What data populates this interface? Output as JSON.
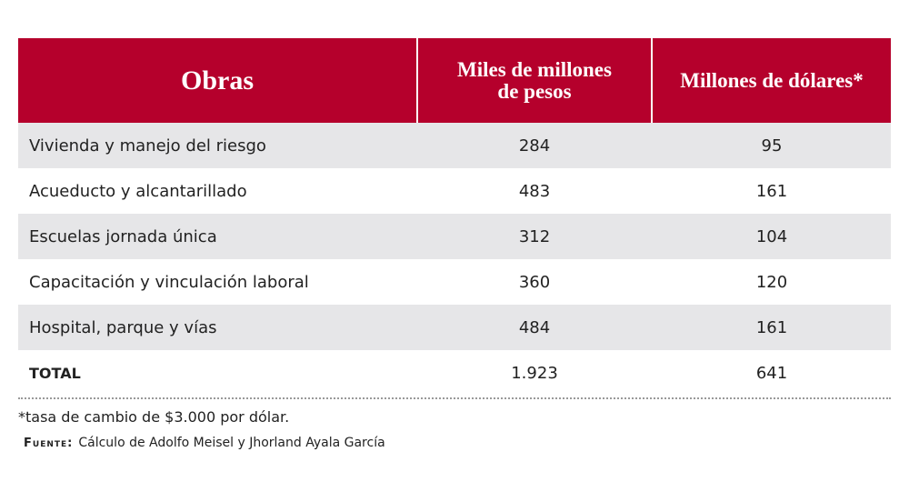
{
  "table": {
    "header": [
      "Obras",
      "Miles de millones de pesos",
      "Millones de dólares*"
    ],
    "rows": [
      [
        "Vivienda y manejo del riesgo",
        "284",
        "95"
      ],
      [
        "Acueducto y alcantarillado",
        "483",
        "161"
      ],
      [
        "Escuelas jornada única",
        "312",
        "104"
      ],
      [
        "Capacitación y vinculación laboral",
        "360",
        "120"
      ],
      [
        "Hospital, parque y vías",
        "484",
        "161"
      ]
    ],
    "total": [
      "TOTAL",
      "1.923",
      "641"
    ]
  },
  "footnote": "*tasa de cambio de $3.000 por dólar.",
  "source": {
    "label": "Fuente:",
    "text": "Cálculo de Adolfo Meisel y Jhorland Ayala García"
  }
}
